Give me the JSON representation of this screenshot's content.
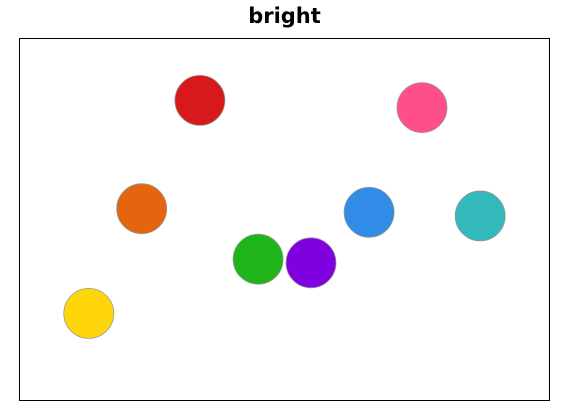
{
  "chart_data": {
    "type": "scatter",
    "title": "bright",
    "xlabel": "",
    "ylabel": "",
    "xlim": [
      0,
      100
    ],
    "ylim": [
      0,
      100
    ],
    "axes_visible": false,
    "grid": false,
    "marker_edge_color": "#999999",
    "points": [
      {
        "x": 34,
        "y": 83,
        "color": "#d7191c"
      },
      {
        "x": 76,
        "y": 81,
        "color": "#ff4f8b"
      },
      {
        "x": 23,
        "y": 53,
        "color": "#e3650f"
      },
      {
        "x": 66,
        "y": 52,
        "color": "#318ce7"
      },
      {
        "x": 87,
        "y": 51,
        "color": "#33b8bc"
      },
      {
        "x": 45,
        "y": 39,
        "color": "#1fb51a"
      },
      {
        "x": 55,
        "y": 38,
        "color": "#8000e0"
      },
      {
        "x": 13,
        "y": 24,
        "color": "#ffd60a"
      }
    ]
  }
}
